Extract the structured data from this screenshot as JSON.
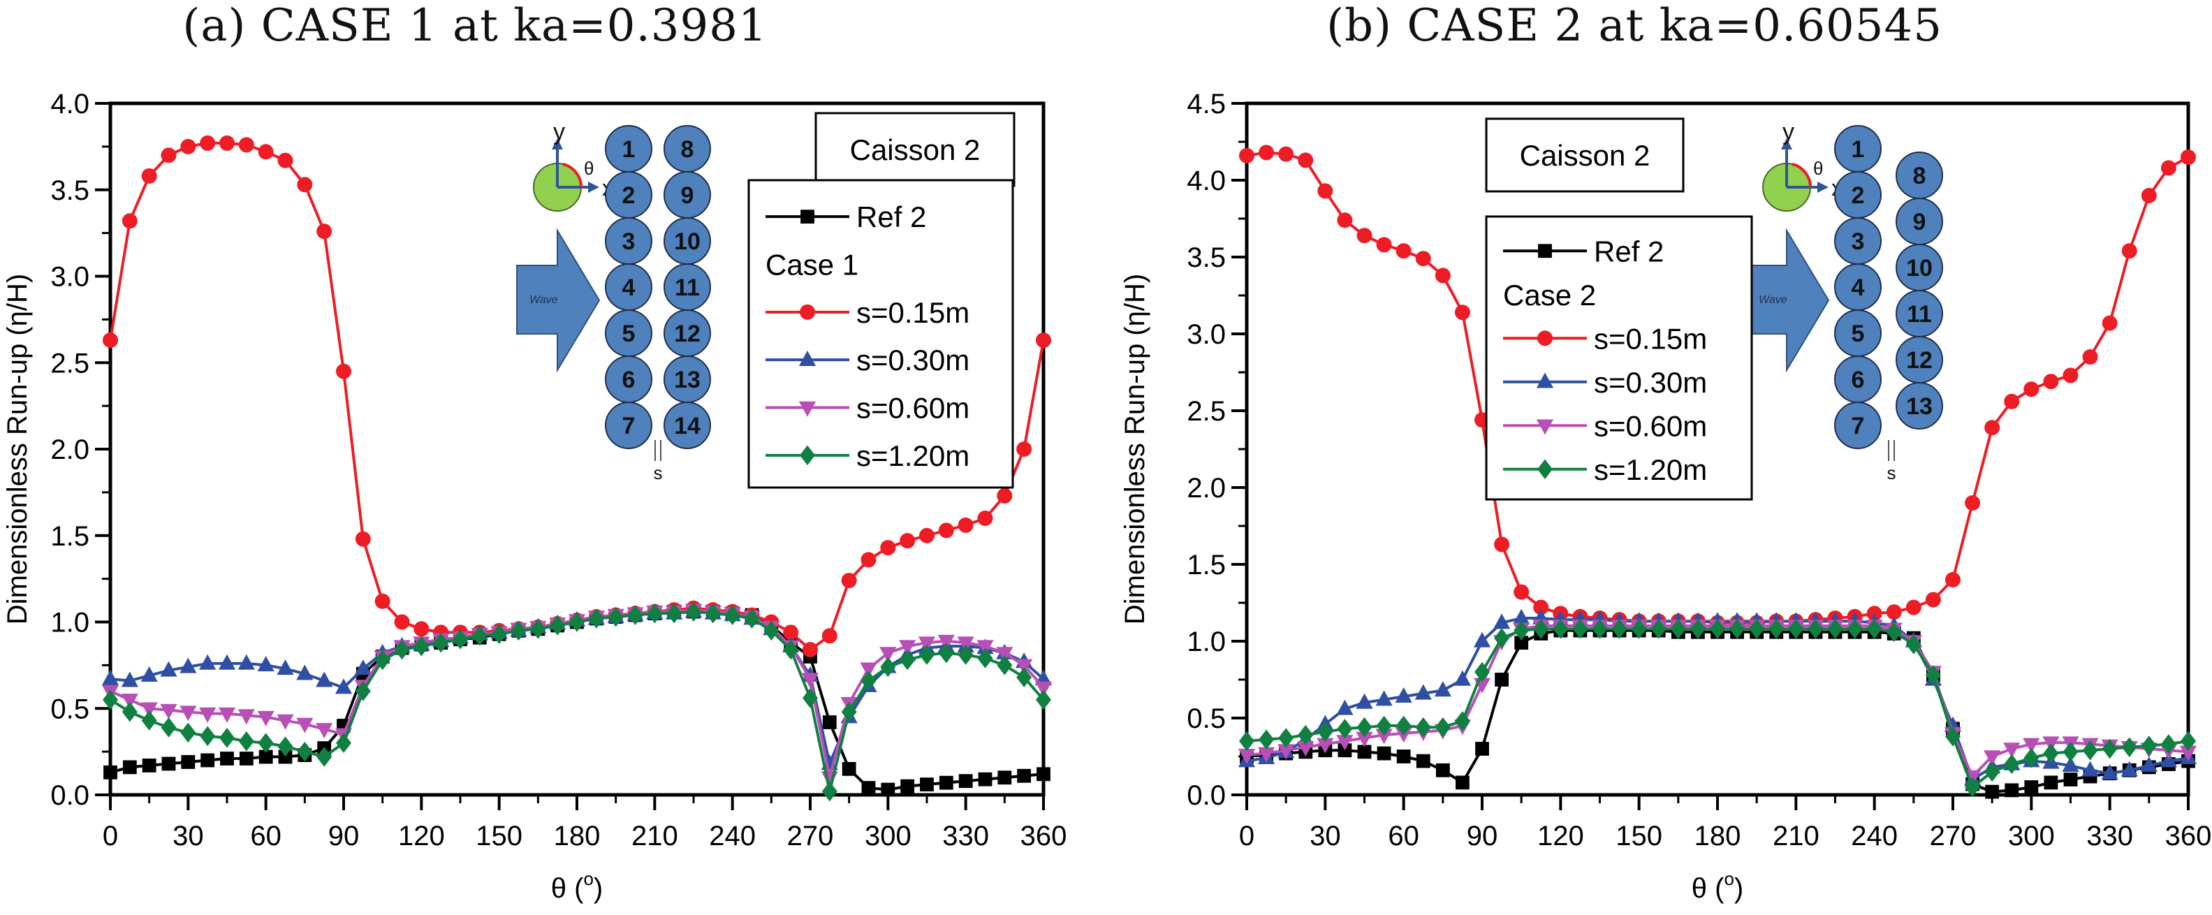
{
  "panels": [
    {
      "title": "(a) CASE 1 at ka=0.3981"
    },
    {
      "title": "(b) CASE 2 at ka=0.60545"
    }
  ],
  "chart_data": [
    {
      "type": "line",
      "title": "(a) CASE 1 at ka=0.3981",
      "xlabel": "θ (°)",
      "xlabel_base": "θ (",
      "xlabel_sup": "o",
      "xlabel_end": ")",
      "ylabel": "Dimensionless Run-up (η/H)",
      "xlim": [
        0,
        360
      ],
      "ylim": [
        0,
        4.0
      ],
      "xticks": [
        0,
        30,
        60,
        90,
        120,
        150,
        180,
        210,
        240,
        270,
        300,
        330,
        360
      ],
      "yticks": [
        0.0,
        0.5,
        1.0,
        1.5,
        2.0,
        2.5,
        3.0,
        3.5,
        4.0
      ],
      "ytick_labels": [
        "0.0",
        "0.5",
        "1.0",
        "1.5",
        "2.0",
        "2.5",
        "3.0",
        "3.5",
        "4.0"
      ],
      "grid": false,
      "annotation_box": "Caisson 2",
      "legend_placement": "top-right",
      "legend_group_label": "Case 1",
      "inset": {
        "description": "Two straight columns of 14 caissons, wave arrow from left, polar angle schematic",
        "arrangement": "straight",
        "column1": [
          "1",
          "2",
          "3",
          "4",
          "5",
          "6",
          "7"
        ],
        "column2": [
          "8",
          "9",
          "10",
          "11",
          "12",
          "13",
          "14"
        ],
        "wave_label": "Wave",
        "axis_x": "x",
        "axis_y": "y",
        "angle": "θ",
        "gap_label": "s"
      },
      "x": [
        0,
        7.5,
        15,
        22.5,
        30,
        37.5,
        45,
        52.5,
        60,
        67.5,
        75,
        82.5,
        90,
        97.5,
        105,
        112.5,
        120,
        127.5,
        135,
        142.5,
        150,
        157.5,
        165,
        172.5,
        180,
        187.5,
        195,
        202.5,
        210,
        217.5,
        225,
        232.5,
        240,
        247.5,
        255,
        262.5,
        270,
        277.5,
        285,
        292.5,
        300,
        307.5,
        315,
        322.5,
        330,
        337.5,
        345,
        352.5,
        360
      ],
      "series": [
        {
          "name": "Ref 2",
          "color": "#000000",
          "marker": "square",
          "values": [
            0.13,
            0.16,
            0.17,
            0.18,
            0.19,
            0.2,
            0.21,
            0.21,
            0.22,
            0.22,
            0.23,
            0.27,
            0.4,
            0.7,
            0.8,
            0.85,
            0.87,
            0.88,
            0.9,
            0.91,
            0.93,
            0.95,
            0.96,
            0.98,
            1.0,
            1.02,
            1.03,
            1.04,
            1.05,
            1.06,
            1.06,
            1.06,
            1.05,
            1.04,
            0.98,
            0.88,
            0.8,
            0.42,
            0.15,
            0.04,
            0.03,
            0.05,
            0.06,
            0.07,
            0.08,
            0.09,
            0.1,
            0.11,
            0.12
          ]
        },
        {
          "name": "s=0.15m",
          "color": "#ee1c24",
          "marker": "circle",
          "values": [
            2.63,
            3.32,
            3.58,
            3.7,
            3.75,
            3.77,
            3.77,
            3.76,
            3.72,
            3.67,
            3.53,
            3.26,
            2.45,
            1.48,
            1.12,
            1.0,
            0.96,
            0.94,
            0.94,
            0.94,
            0.95,
            0.96,
            0.97,
            0.99,
            1.01,
            1.03,
            1.04,
            1.05,
            1.06,
            1.07,
            1.08,
            1.07,
            1.06,
            1.04,
            1.0,
            0.94,
            0.84,
            0.92,
            1.24,
            1.36,
            1.43,
            1.47,
            1.5,
            1.53,
            1.56,
            1.6,
            1.73,
            2.0,
            2.63
          ]
        },
        {
          "name": "s=0.30m",
          "color": "#2e4fa3",
          "marker": "triangle-up",
          "values": [
            0.67,
            0.66,
            0.69,
            0.72,
            0.74,
            0.76,
            0.76,
            0.76,
            0.75,
            0.73,
            0.7,
            0.66,
            0.62,
            0.73,
            0.82,
            0.86,
            0.87,
            0.89,
            0.91,
            0.93,
            0.94,
            0.95,
            0.97,
            0.99,
            1.01,
            1.02,
            1.03,
            1.04,
            1.05,
            1.05,
            1.06,
            1.05,
            1.04,
            1.02,
            0.96,
            0.86,
            0.69,
            0.18,
            0.45,
            0.63,
            0.74,
            0.81,
            0.85,
            0.86,
            0.86,
            0.85,
            0.82,
            0.77,
            0.67
          ]
        },
        {
          "name": "s=0.60m",
          "color": "#b84fb6",
          "marker": "triangle-down",
          "values": [
            0.6,
            0.55,
            0.5,
            0.49,
            0.48,
            0.47,
            0.47,
            0.46,
            0.45,
            0.43,
            0.41,
            0.38,
            0.35,
            0.63,
            0.8,
            0.86,
            0.88,
            0.9,
            0.91,
            0.93,
            0.94,
            0.96,
            0.97,
            0.99,
            1.01,
            1.03,
            1.04,
            1.05,
            1.06,
            1.06,
            1.07,
            1.06,
            1.05,
            1.03,
            0.97,
            0.86,
            0.67,
            0.1,
            0.53,
            0.73,
            0.82,
            0.86,
            0.88,
            0.89,
            0.88,
            0.86,
            0.82,
            0.75,
            0.62
          ]
        },
        {
          "name": "s=1.20m",
          "color": "#108040",
          "marker": "diamond",
          "values": [
            0.55,
            0.48,
            0.43,
            0.39,
            0.36,
            0.34,
            0.33,
            0.31,
            0.3,
            0.28,
            0.25,
            0.22,
            0.3,
            0.6,
            0.78,
            0.84,
            0.86,
            0.88,
            0.9,
            0.92,
            0.93,
            0.95,
            0.96,
            0.98,
            1.0,
            1.02,
            1.03,
            1.04,
            1.05,
            1.05,
            1.06,
            1.05,
            1.04,
            1.02,
            0.95,
            0.84,
            0.56,
            0.02,
            0.48,
            0.66,
            0.74,
            0.78,
            0.81,
            0.82,
            0.81,
            0.79,
            0.75,
            0.68,
            0.55
          ]
        }
      ]
    },
    {
      "type": "line",
      "title": "(b) CASE 2 at ka=0.60545",
      "xlabel": "θ (°)",
      "xlabel_base": "θ (",
      "xlabel_sup": "o",
      "xlabel_end": ")",
      "ylabel": "Dimensionless Run-up (η/H)",
      "xlim": [
        0,
        360
      ],
      "ylim": [
        0,
        4.5
      ],
      "xticks": [
        0,
        30,
        60,
        90,
        120,
        150,
        180,
        210,
        240,
        270,
        300,
        330,
        360
      ],
      "yticks": [
        0.0,
        0.5,
        1.0,
        1.5,
        2.0,
        2.5,
        3.0,
        3.5,
        4.0,
        4.5
      ],
      "ytick_labels": [
        "0.0",
        "0.5",
        "1.0",
        "1.5",
        "2.0",
        "2.5",
        "3.0",
        "3.5",
        "4.0",
        "4.5"
      ],
      "grid": false,
      "annotation_box": "Caisson 2",
      "legend_placement": "top-left",
      "legend_group_label": "Case 2",
      "inset": {
        "description": "Two staggered columns of 13 caissons, wave arrow from left, polar angle schematic",
        "arrangement": "staggered",
        "column1": [
          "1",
          "2",
          "3",
          "4",
          "5",
          "6",
          "7"
        ],
        "column2": [
          "8",
          "9",
          "10",
          "11",
          "12",
          "13"
        ],
        "wave_label": "Wave",
        "axis_x": "x",
        "axis_y": "y",
        "angle": "θ",
        "gap_label": "s"
      },
      "x": [
        0,
        7.5,
        15,
        22.5,
        30,
        37.5,
        45,
        52.5,
        60,
        67.5,
        75,
        82.5,
        90,
        97.5,
        105,
        112.5,
        120,
        127.5,
        135,
        142.5,
        150,
        157.5,
        165,
        172.5,
        180,
        187.5,
        195,
        202.5,
        210,
        217.5,
        225,
        232.5,
        240,
        247.5,
        255,
        262.5,
        270,
        277.5,
        285,
        292.5,
        300,
        307.5,
        315,
        322.5,
        330,
        337.5,
        345,
        352.5,
        360
      ],
      "series": [
        {
          "name": "Ref 2",
          "color": "#000000",
          "marker": "square",
          "values": [
            0.25,
            0.26,
            0.27,
            0.28,
            0.29,
            0.29,
            0.28,
            0.27,
            0.25,
            0.22,
            0.16,
            0.08,
            0.3,
            0.75,
            0.99,
            1.05,
            1.07,
            1.07,
            1.07,
            1.07,
            1.07,
            1.07,
            1.06,
            1.06,
            1.06,
            1.06,
            1.06,
            1.06,
            1.06,
            1.06,
            1.06,
            1.06,
            1.06,
            1.05,
            1.02,
            0.78,
            0.43,
            0.07,
            0.02,
            0.03,
            0.05,
            0.08,
            0.1,
            0.12,
            0.14,
            0.16,
            0.18,
            0.2,
            0.22
          ]
        },
        {
          "name": "s=0.15m",
          "color": "#ee1c24",
          "marker": "circle",
          "values": [
            4.16,
            4.18,
            4.17,
            4.13,
            3.93,
            3.74,
            3.64,
            3.58,
            3.54,
            3.49,
            3.38,
            3.14,
            2.44,
            1.63,
            1.32,
            1.22,
            1.18,
            1.16,
            1.15,
            1.14,
            1.13,
            1.13,
            1.13,
            1.13,
            1.12,
            1.12,
            1.12,
            1.13,
            1.13,
            1.14,
            1.15,
            1.16,
            1.18,
            1.19,
            1.22,
            1.27,
            1.4,
            1.9,
            2.39,
            2.56,
            2.64,
            2.69,
            2.73,
            2.85,
            3.07,
            3.54,
            3.9,
            4.08,
            4.15
          ]
        },
        {
          "name": "s=0.30m",
          "color": "#2e4fa3",
          "marker": "triangle-up",
          "values": [
            0.22,
            0.24,
            0.28,
            0.36,
            0.46,
            0.56,
            0.6,
            0.62,
            0.64,
            0.66,
            0.68,
            0.75,
            1.0,
            1.12,
            1.15,
            1.15,
            1.14,
            1.14,
            1.14,
            1.13,
            1.13,
            1.13,
            1.13,
            1.13,
            1.13,
            1.13,
            1.13,
            1.13,
            1.13,
            1.13,
            1.13,
            1.13,
            1.12,
            1.1,
            1.0,
            0.75,
            0.45,
            0.1,
            0.18,
            0.2,
            0.22,
            0.21,
            0.19,
            0.16,
            0.14,
            0.16,
            0.19,
            0.22,
            0.24
          ]
        },
        {
          "name": "s=0.60m",
          "color": "#b84fb6",
          "marker": "triangle-down",
          "values": [
            0.26,
            0.27,
            0.29,
            0.31,
            0.33,
            0.35,
            0.37,
            0.39,
            0.4,
            0.41,
            0.42,
            0.45,
            0.72,
            1.0,
            1.08,
            1.1,
            1.1,
            1.1,
            1.1,
            1.1,
            1.1,
            1.1,
            1.1,
            1.1,
            1.1,
            1.1,
            1.1,
            1.1,
            1.1,
            1.1,
            1.1,
            1.1,
            1.1,
            1.08,
            1.0,
            0.8,
            0.4,
            0.12,
            0.25,
            0.3,
            0.33,
            0.34,
            0.34,
            0.33,
            0.32,
            0.31,
            0.3,
            0.29,
            0.28
          ]
        },
        {
          "name": "s=1.20m",
          "color": "#108040",
          "marker": "diamond",
          "values": [
            0.35,
            0.36,
            0.37,
            0.39,
            0.41,
            0.43,
            0.44,
            0.45,
            0.45,
            0.44,
            0.44,
            0.48,
            0.8,
            1.02,
            1.07,
            1.08,
            1.08,
            1.08,
            1.08,
            1.08,
            1.08,
            1.08,
            1.08,
            1.08,
            1.08,
            1.08,
            1.08,
            1.08,
            1.08,
            1.08,
            1.08,
            1.08,
            1.08,
            1.06,
            0.98,
            0.78,
            0.38,
            0.05,
            0.15,
            0.2,
            0.24,
            0.27,
            0.28,
            0.29,
            0.3,
            0.31,
            0.32,
            0.33,
            0.35
          ]
        }
      ]
    }
  ]
}
